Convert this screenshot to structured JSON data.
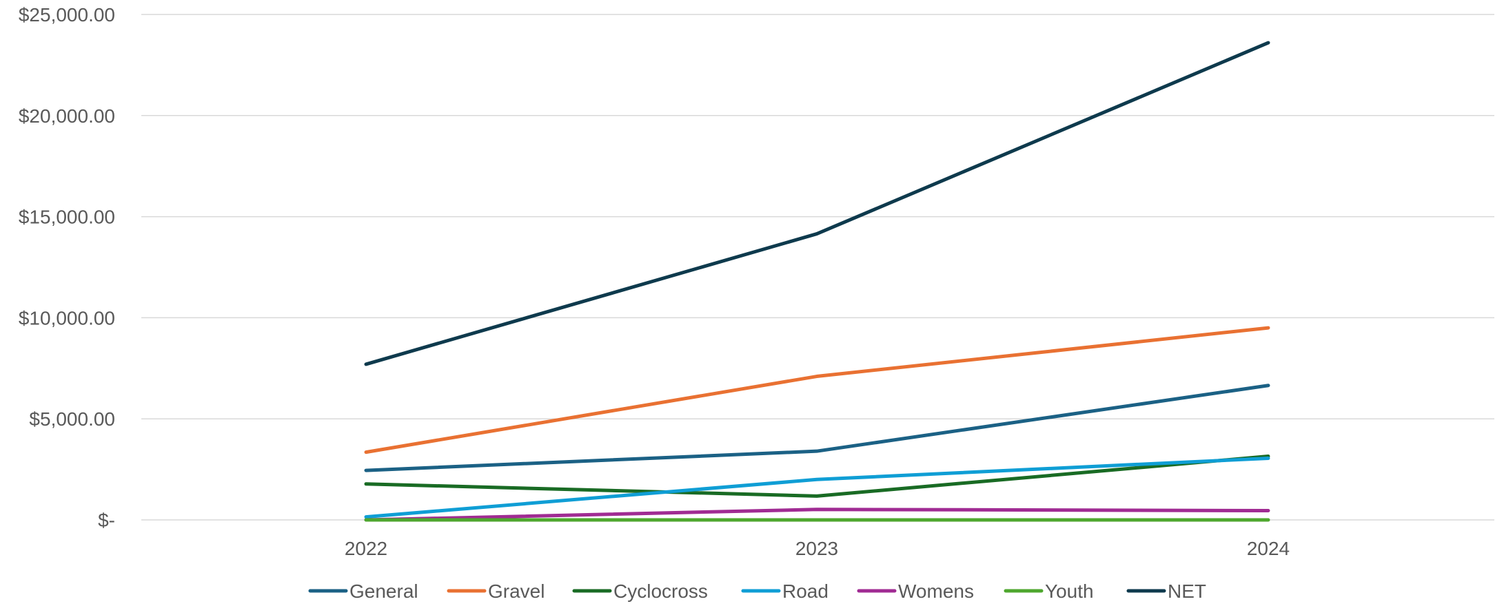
{
  "chart_data": {
    "type": "line",
    "categories": [
      "2022",
      "2023",
      "2024"
    ],
    "ylim": [
      0,
      25000
    ],
    "y_ticks": [
      0,
      5000,
      10000,
      15000,
      20000,
      25000
    ],
    "y_tick_labels": [
      "$-",
      "$5,000.00",
      "$10,000.00",
      "$15,000.00",
      "$20,000.00",
      "$25,000.00"
    ],
    "grid": true,
    "legend_position": "bottom",
    "series": [
      {
        "name": "General",
        "color": "#1b6185",
        "values": [
          2450,
          3400,
          6650
        ]
      },
      {
        "name": "Gravel",
        "color": "#e97132",
        "values": [
          3350,
          7100,
          9500
        ]
      },
      {
        "name": "Cyclocross",
        "color": "#196b24",
        "values": [
          1780,
          1180,
          3150
        ]
      },
      {
        "name": "Road",
        "color": "#0f9ed5",
        "values": [
          150,
          2000,
          3050
        ]
      },
      {
        "name": "Womens",
        "color": "#a02b93",
        "values": [
          0,
          520,
          460
        ]
      },
      {
        "name": "Youth",
        "color": "#4ea72e",
        "values": [
          0,
          0,
          0
        ]
      },
      {
        "name": "NET",
        "color": "#0e3a4d",
        "values": [
          7700,
          14150,
          23600
        ]
      }
    ]
  }
}
